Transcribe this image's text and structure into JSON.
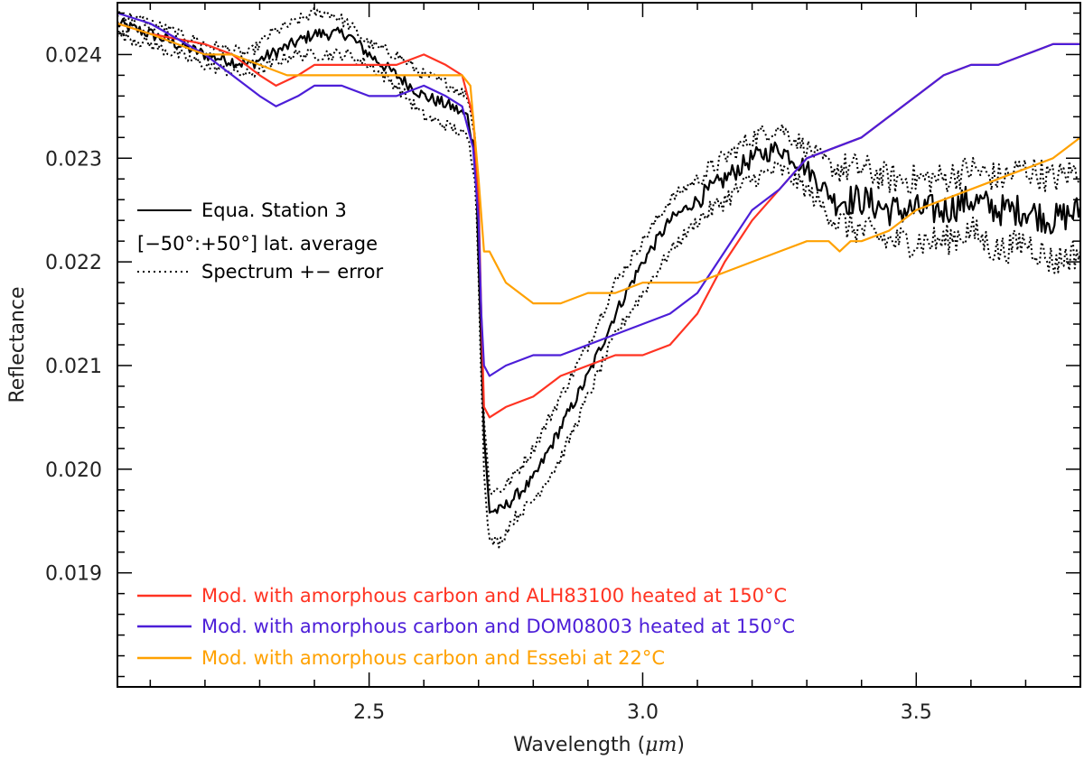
{
  "chart_data": {
    "type": "line",
    "title": "",
    "xlabel": "Wavelength (",
    "xlabel_unit": "μm",
    "xlabel_close": ")",
    "ylabel": "Reflectance",
    "xlim": [
      2.04,
      3.8
    ],
    "ylim": [
      0.0179,
      0.0245
    ],
    "x_ticks": [
      2.5,
      3.0,
      3.5
    ],
    "x_tick_labels": [
      "2.5",
      "3.0",
      "3.5"
    ],
    "y_ticks": [
      0.019,
      0.02,
      0.021,
      0.022,
      0.023,
      0.024
    ],
    "y_tick_labels": [
      "0.019",
      "0.020",
      "0.021",
      "0.022",
      "0.023",
      "0.024"
    ],
    "grid": false,
    "legend_top": [
      {
        "label": "Equa. Station 3",
        "style": "solid",
        "color": "#000000"
      },
      {
        "label": "[−50°:+50°] lat. average",
        "style": "none",
        "color": "#000000"
      },
      {
        "label": "Spectrum +− error",
        "style": "dotted",
        "color": "#000000"
      }
    ],
    "legend_bottom": [
      {
        "label": "Mod. with amorphous carbon and ALH83100 heated at 150°C",
        "color": "#ff3322"
      },
      {
        "label": "Mod. with amorphous carbon and DOM08003 heated at 150°C",
        "color": "#4c1ed8"
      },
      {
        "label": "Mod. with amorphous carbon and Essebi at 22°C",
        "color": "#ffa100"
      }
    ],
    "series": [
      {
        "name": "Equa. Station 3",
        "color": "#000000",
        "style": "solid",
        "noise": 6e-05,
        "x": [
          2.04,
          2.1,
          2.2,
          2.28,
          2.32,
          2.36,
          2.4,
          2.43,
          2.46,
          2.5,
          2.55,
          2.6,
          2.65,
          2.68,
          2.695,
          2.7,
          2.71,
          2.72,
          2.74,
          2.76,
          2.8,
          2.85,
          2.9,
          2.95,
          3.0,
          3.05,
          3.1,
          3.15,
          3.2,
          3.25,
          3.3,
          3.35,
          3.4,
          3.45,
          3.5,
          3.55,
          3.6,
          3.65,
          3.7,
          3.75,
          3.8
        ],
        "y": [
          0.0243,
          0.0242,
          0.024,
          0.0239,
          0.024,
          0.0241,
          0.0242,
          0.0242,
          0.0242,
          0.024,
          0.0238,
          0.0236,
          0.0235,
          0.0234,
          0.023,
          0.022,
          0.0203,
          0.0196,
          0.0196,
          0.0197,
          0.0199,
          0.0204,
          0.0209,
          0.0215,
          0.022,
          0.0224,
          0.0226,
          0.0228,
          0.023,
          0.0231,
          0.0229,
          0.0226,
          0.0226,
          0.0225,
          0.0225,
          0.0225,
          0.0226,
          0.0225,
          0.0225,
          0.0224,
          0.0225
        ]
      },
      {
        "name": "Spectrum + error",
        "color": "#000000",
        "style": "dotted",
        "noise": 6e-05,
        "x": [
          2.04,
          2.1,
          2.2,
          2.28,
          2.32,
          2.36,
          2.4,
          2.43,
          2.46,
          2.5,
          2.55,
          2.6,
          2.65,
          2.68,
          2.695,
          2.7,
          2.71,
          2.72,
          2.74,
          2.76,
          2.8,
          2.85,
          2.9,
          2.95,
          3.0,
          3.05,
          3.1,
          3.15,
          3.2,
          3.25,
          3.3,
          3.35,
          3.4,
          3.45,
          3.5,
          3.55,
          3.6,
          3.65,
          3.7,
          3.75,
          3.8
        ],
        "y": [
          0.0244,
          0.0243,
          0.0241,
          0.024,
          0.0242,
          0.0243,
          0.0244,
          0.0244,
          0.0243,
          0.0241,
          0.024,
          0.0238,
          0.0237,
          0.0236,
          0.0232,
          0.0222,
          0.0205,
          0.0198,
          0.0198,
          0.0199,
          0.0202,
          0.0207,
          0.0212,
          0.0218,
          0.0222,
          0.0226,
          0.0228,
          0.023,
          0.0232,
          0.0233,
          0.0231,
          0.0229,
          0.0229,
          0.0228,
          0.0228,
          0.0228,
          0.0229,
          0.0228,
          0.0229,
          0.0228,
          0.0229
        ]
      },
      {
        "name": "Spectrum - error",
        "color": "#000000",
        "style": "dotted",
        "noise": 6e-05,
        "x": [
          2.04,
          2.1,
          2.2,
          2.28,
          2.32,
          2.36,
          2.4,
          2.43,
          2.46,
          2.5,
          2.55,
          2.6,
          2.65,
          2.68,
          2.695,
          2.7,
          2.71,
          2.72,
          2.74,
          2.76,
          2.8,
          2.85,
          2.9,
          2.95,
          3.0,
          3.05,
          3.1,
          3.15,
          3.2,
          3.25,
          3.3,
          3.35,
          3.4,
          3.45,
          3.5,
          3.55,
          3.6,
          3.65,
          3.7,
          3.75,
          3.8
        ],
        "y": [
          0.0242,
          0.0241,
          0.0239,
          0.0238,
          0.0239,
          0.024,
          0.024,
          0.024,
          0.024,
          0.0239,
          0.0237,
          0.0234,
          0.0233,
          0.0232,
          0.0228,
          0.0218,
          0.02,
          0.0193,
          0.0193,
          0.0195,
          0.0197,
          0.0201,
          0.0207,
          0.0213,
          0.0217,
          0.0221,
          0.0224,
          0.0226,
          0.0228,
          0.0229,
          0.0227,
          0.0224,
          0.0223,
          0.0222,
          0.0222,
          0.0222,
          0.0223,
          0.0221,
          0.0222,
          0.022,
          0.0221
        ]
      },
      {
        "name": "Mod. with amorphous carbon and ALH83100 heated at 150°C",
        "color": "#ff3322",
        "style": "solid",
        "noise": 0,
        "x": [
          2.04,
          2.1,
          2.2,
          2.25,
          2.3,
          2.33,
          2.37,
          2.4,
          2.45,
          2.5,
          2.55,
          2.6,
          2.64,
          2.67,
          2.69,
          2.7,
          2.705,
          2.71,
          2.72,
          2.75,
          2.8,
          2.85,
          2.9,
          2.95,
          3.0,
          3.05,
          3.1,
          3.15,
          3.2,
          3.25,
          3.3,
          3.35,
          3.4,
          3.45,
          3.5,
          3.55,
          3.6,
          3.65,
          3.7,
          3.75,
          3.8
        ],
        "y": [
          0.0243,
          0.0242,
          0.0241,
          0.024,
          0.0238,
          0.0237,
          0.0238,
          0.0239,
          0.0239,
          0.0239,
          0.0239,
          0.024,
          0.0239,
          0.0238,
          0.0234,
          0.0226,
          0.0215,
          0.0206,
          0.0205,
          0.0206,
          0.0207,
          0.0209,
          0.021,
          0.0211,
          0.0211,
          0.0212,
          0.0215,
          0.022,
          0.0224,
          0.0227,
          0.023,
          0.0231,
          0.0232,
          0.0234,
          0.0236,
          0.0238,
          0.0239,
          0.0239,
          0.024,
          0.0241,
          0.0241
        ]
      },
      {
        "name": "Mod. with amorphous carbon and DOM08003 heated at 150°C",
        "color": "#4c1ed8",
        "style": "solid",
        "noise": 0,
        "x": [
          2.04,
          2.1,
          2.2,
          2.25,
          2.3,
          2.33,
          2.37,
          2.4,
          2.45,
          2.5,
          2.55,
          2.6,
          2.64,
          2.67,
          2.69,
          2.7,
          2.705,
          2.71,
          2.72,
          2.75,
          2.8,
          2.85,
          2.9,
          2.95,
          3.0,
          3.05,
          3.1,
          3.15,
          3.2,
          3.25,
          3.3,
          3.35,
          3.4,
          3.45,
          3.5,
          3.55,
          3.6,
          3.65,
          3.7,
          3.75,
          3.8
        ],
        "y": [
          0.0244,
          0.0243,
          0.024,
          0.0238,
          0.0236,
          0.0235,
          0.0236,
          0.0237,
          0.0237,
          0.0236,
          0.0236,
          0.0237,
          0.0236,
          0.0235,
          0.0231,
          0.0224,
          0.0215,
          0.021,
          0.0209,
          0.021,
          0.0211,
          0.0211,
          0.0212,
          0.0213,
          0.0214,
          0.0215,
          0.0217,
          0.0221,
          0.0225,
          0.0227,
          0.023,
          0.0231,
          0.0232,
          0.0234,
          0.0236,
          0.0238,
          0.0239,
          0.0239,
          0.024,
          0.0241,
          0.0241
        ]
      },
      {
        "name": "Mod. with amorphous carbon and Essebi at 22°C",
        "color": "#ffa100",
        "style": "solid",
        "noise": 0,
        "x": [
          2.04,
          2.1,
          2.2,
          2.25,
          2.3,
          2.35,
          2.4,
          2.45,
          2.5,
          2.55,
          2.6,
          2.64,
          2.67,
          2.685,
          2.69,
          2.7,
          2.71,
          2.72,
          2.73,
          2.75,
          2.8,
          2.85,
          2.9,
          2.95,
          3.0,
          3.05,
          3.1,
          3.15,
          3.2,
          3.25,
          3.3,
          3.34,
          3.36,
          3.38,
          3.4,
          3.45,
          3.5,
          3.55,
          3.6,
          3.65,
          3.7,
          3.75,
          3.8
        ],
        "y": [
          0.0243,
          0.0242,
          0.024,
          0.024,
          0.0239,
          0.0238,
          0.0238,
          0.0238,
          0.0238,
          0.0238,
          0.0238,
          0.0238,
          0.0238,
          0.0237,
          0.0234,
          0.0228,
          0.0221,
          0.0221,
          0.022,
          0.0218,
          0.0216,
          0.0216,
          0.0217,
          0.0217,
          0.0218,
          0.0218,
          0.0218,
          0.0219,
          0.022,
          0.0221,
          0.0222,
          0.0222,
          0.0221,
          0.0222,
          0.0222,
          0.0223,
          0.0225,
          0.0226,
          0.0227,
          0.0228,
          0.0229,
          0.023,
          0.0232
        ]
      }
    ]
  }
}
